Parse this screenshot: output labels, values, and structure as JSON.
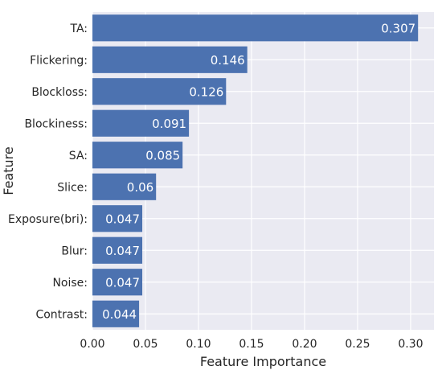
{
  "chart_data": {
    "type": "bar",
    "orientation": "horizontal",
    "xlabel": "Feature Importance",
    "ylabel": "Feature",
    "categories": [
      "TA:",
      "Flickering:",
      "Blockloss:",
      "Blockiness:",
      "SA:",
      "Slice:",
      "Exposure(bri):",
      "Blur:",
      "Noise:",
      "Contrast:"
    ],
    "values": [
      0.307,
      0.146,
      0.126,
      0.091,
      0.085,
      0.06,
      0.047,
      0.047,
      0.047,
      0.044
    ],
    "value_labels": [
      "0.307",
      "0.146",
      "0.126",
      "0.091",
      "0.085",
      "0.06",
      "0.047",
      "0.047",
      "0.047",
      "0.044"
    ],
    "xticks": [
      0.0,
      0.05,
      0.1,
      0.15,
      0.2,
      0.25,
      0.3
    ],
    "xtick_labels": [
      "0.00",
      "0.05",
      "0.10",
      "0.15",
      "0.20",
      "0.25",
      "0.30"
    ],
    "xlim": [
      0,
      0.322
    ],
    "grid": true,
    "colors": {
      "bar": "#4c72b0",
      "plot_background": "#eaeaf2",
      "grid": "#ffffff",
      "text": "#262626",
      "value_text": "#ffffff"
    }
  }
}
